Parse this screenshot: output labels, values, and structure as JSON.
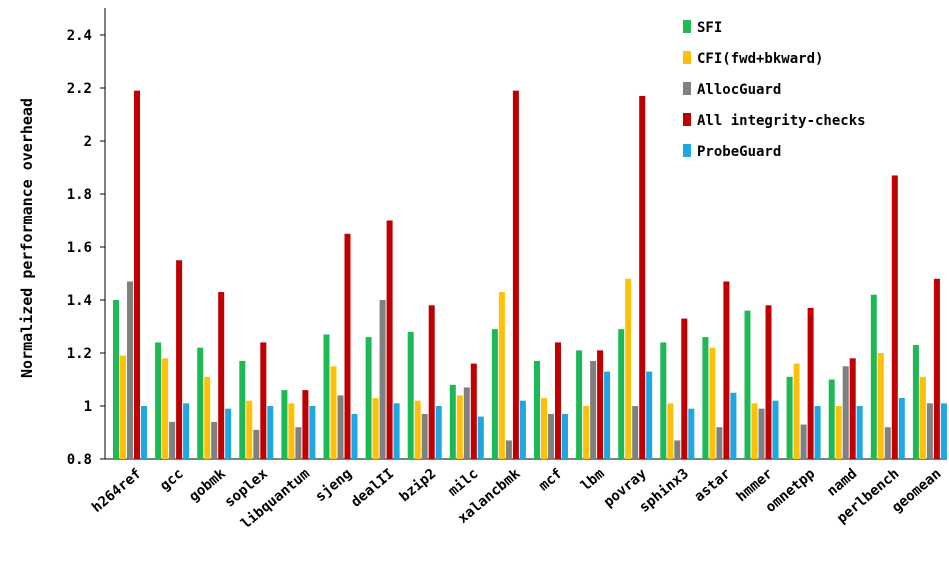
{
  "chart_data": {
    "type": "bar",
    "title": "",
    "xlabel": "",
    "ylabel": "Normalized performance overhead",
    "ylim": [
      0.8,
      2.5
    ],
    "yticks": [
      0.8,
      1,
      1.2,
      1.4,
      1.6,
      1.8,
      2,
      2.2,
      2.4
    ],
    "ytick_labels": [
      "0.8",
      "1",
      "1.2",
      "1.4",
      "1.6",
      "1.8",
      "2",
      "2.2",
      "2.4"
    ],
    "grid": false,
    "legend_position": "top-right",
    "categories": [
      "h264ref",
      "gcc",
      "gobmk",
      "soplex",
      "libquantum",
      "sjeng",
      "dealII",
      "bzip2",
      "milc",
      "xalancbmk",
      "mcf",
      "lbm",
      "povray",
      "sphinx3",
      "astar",
      "hmmer",
      "omnetpp",
      "namd",
      "perlbench",
      "geomean"
    ],
    "series": [
      {
        "name": "SFI",
        "color": "#1db954",
        "values": [
          1.4,
          1.24,
          1.22,
          1.17,
          1.06,
          1.27,
          1.26,
          1.28,
          1.08,
          1.29,
          1.17,
          1.21,
          1.29,
          1.24,
          1.26,
          1.36,
          1.11,
          1.1,
          1.42,
          1.23
        ]
      },
      {
        "name": "CFI(fwd+bkward)",
        "color": "#ffc107",
        "values": [
          1.19,
          1.18,
          1.11,
          1.02,
          1.01,
          1.15,
          1.03,
          1.02,
          1.04,
          1.43,
          1.03,
          1.0,
          1.48,
          1.01,
          1.22,
          1.01,
          1.16,
          1.0,
          1.2,
          1.11
        ]
      },
      {
        "name": "AllocGuard",
        "color": "#808080",
        "values": [
          1.47,
          0.94,
          0.94,
          0.91,
          0.92,
          1.04,
          1.4,
          0.97,
          1.07,
          0.87,
          0.97,
          1.17,
          1.0,
          0.87,
          0.92,
          0.99,
          0.93,
          1.15,
          0.92,
          1.01
        ]
      },
      {
        "name": "All integrity-checks",
        "color": "#c00000",
        "values": [
          2.19,
          1.55,
          1.43,
          1.24,
          1.06,
          1.65,
          1.7,
          1.38,
          1.16,
          2.19,
          1.24,
          1.21,
          2.17,
          1.33,
          1.47,
          1.38,
          1.37,
          1.18,
          1.87,
          1.48
        ]
      },
      {
        "name": "ProbeGuard",
        "color": "#1ea7e1",
        "values": [
          1.0,
          1.01,
          0.99,
          1.0,
          1.0,
          0.97,
          1.01,
          1.0,
          0.96,
          1.02,
          0.97,
          1.13,
          1.13,
          0.99,
          1.05,
          1.02,
          1.0,
          1.0,
          1.03,
          1.01
        ]
      }
    ]
  }
}
